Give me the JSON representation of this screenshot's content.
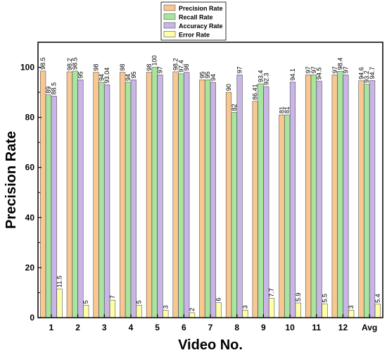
{
  "chart_data": {
    "type": "bar",
    "categories": [
      "1",
      "2",
      "3",
      "4",
      "5",
      "6",
      "7",
      "8",
      "9",
      "10",
      "11",
      "12",
      "Avg"
    ],
    "series": [
      {
        "name": "Precision Rate",
        "color": "#F9C891",
        "values": [
          98.5,
          98.2,
          98,
          98,
          98,
          98.2,
          95,
          90,
          86.41,
          81,
          97,
          97,
          94.6
        ],
        "labels": [
          "98.5",
          "98.2",
          "98",
          "98",
          "98",
          "98.2",
          "95",
          "90",
          "86.41",
          "81",
          "97",
          "97",
          "94.6"
        ]
      },
      {
        "name": "Recall Rate",
        "color": "#A8E6A0",
        "values": [
          89,
          98.5,
          94,
          94,
          100,
          97.4,
          95,
          82,
          93.4,
          81,
          97,
          98.4,
          93.2
        ],
        "labels": [
          "89",
          "98.5",
          "94",
          "94",
          "100",
          "97.4",
          "95",
          "82",
          "93.4",
          "81",
          "97",
          "98.4",
          "93.2"
        ]
      },
      {
        "name": "Accuracy Rate",
        "color": "#C9B5E6",
        "values": [
          88.5,
          95,
          93.04,
          95,
          97,
          98,
          94,
          97,
          92.3,
          94.1,
          94.5,
          97,
          94.7
        ],
        "labels": [
          "88.5",
          "95",
          "93.04",
          "95",
          "97",
          "98",
          "94",
          "97",
          "92.3",
          "94.1",
          "94.5",
          "97",
          "94.7"
        ]
      },
      {
        "name": "Error Rate",
        "color": "#FFFFAA",
        "values": [
          11.5,
          5,
          7,
          5,
          3,
          2,
          6,
          3,
          7.7,
          5.9,
          5.5,
          3,
          5.4
        ],
        "labels": [
          "11.5",
          "5",
          "7",
          "5",
          "3",
          "2",
          "6",
          "3",
          "7.7",
          "5.9",
          "5.5",
          "3",
          "5.4"
        ]
      }
    ],
    "xlabel": "Video No.",
    "ylabel": "Precision Rate",
    "ylim": [
      0,
      110
    ],
    "yticks": [
      0,
      20,
      40,
      60,
      80,
      100
    ],
    "grid": false,
    "legend_position": "top-center"
  }
}
